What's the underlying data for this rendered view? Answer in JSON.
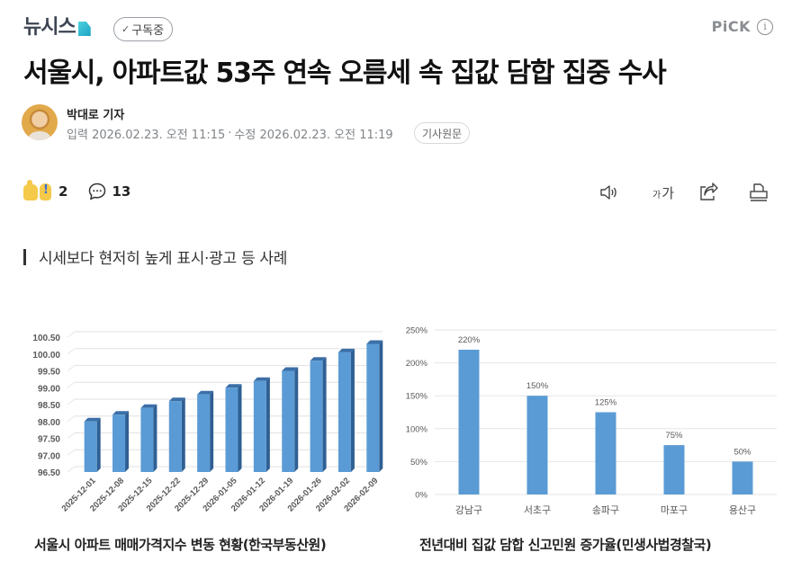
{
  "header": {
    "logo_text": "뉴시스",
    "subscribe_label": "구독중",
    "subscribe_check": "✓",
    "pick_label": "PiCK",
    "info_glyph": "i"
  },
  "article": {
    "title": "서울시, 아파트값 53주 연속 오름세 속 집값 담합 집중 수사",
    "author": "박대로 기자",
    "input_label": "입력",
    "input_time": "2026.02.23. 오전 11:15",
    "separator": "·",
    "edit_label": "수정",
    "edit_time": "2026.02.23. 오전 11:19",
    "original_button": "기사원문",
    "reaction_count": "2",
    "comment_count": "13",
    "toolbar": {
      "tts_icon": "speaker-icon",
      "font_small": "가",
      "font_large": "가",
      "share_icon": "share-icon",
      "print_icon": "print-icon"
    },
    "subheading": "시세보다 현저히 높게 표시·광고 등 사례"
  },
  "colors": {
    "bar_blue": "#5b9bd5",
    "bar_blue_dark": "#2f5f93",
    "bar_blue_side": "#3b6fa8",
    "grid": "#e6e6e6",
    "axis_text": "#595959"
  },
  "chart_data": [
    {
      "type": "bar",
      "style": "3d-column",
      "title": "서울시 아파트 매매가격지수 변동 현황(한국부동산원)",
      "xlabel": "",
      "ylabel": "",
      "categories": [
        "2025-12-01",
        "2025-12-08",
        "2025-12-15",
        "2025-12-22",
        "2025-12-29",
        "2026-01-05",
        "2026-01-12",
        "2026-01-19",
        "2026-01-26",
        "2026-02-02",
        "2026-02-09"
      ],
      "values": [
        98.0,
        98.2,
        98.4,
        98.6,
        98.8,
        99.0,
        99.2,
        99.5,
        99.8,
        100.05,
        100.3
      ],
      "ylim": [
        96.5,
        100.5
      ],
      "yticks": [
        "96.50",
        "97.00",
        "97.50",
        "98.00",
        "98.50",
        "99.00",
        "99.50",
        "100.00",
        "100.50"
      ],
      "grid": true,
      "legend": null,
      "x_tick_rotation": -45
    },
    {
      "type": "bar",
      "title": "전년대비 집값 담합 신고민원 증가율(민생사법경찰국)",
      "xlabel": "",
      "ylabel": "",
      "categories": [
        "강남구",
        "서초구",
        "송파구",
        "마포구",
        "용산구"
      ],
      "values": [
        220,
        150,
        125,
        75,
        50
      ],
      "data_labels": [
        "220%",
        "150%",
        "125%",
        "75%",
        "50%"
      ],
      "ylim": [
        0,
        250
      ],
      "yticks": [
        "0%",
        "50%",
        "100%",
        "150%",
        "200%",
        "250%"
      ],
      "grid": true,
      "legend": null
    }
  ]
}
